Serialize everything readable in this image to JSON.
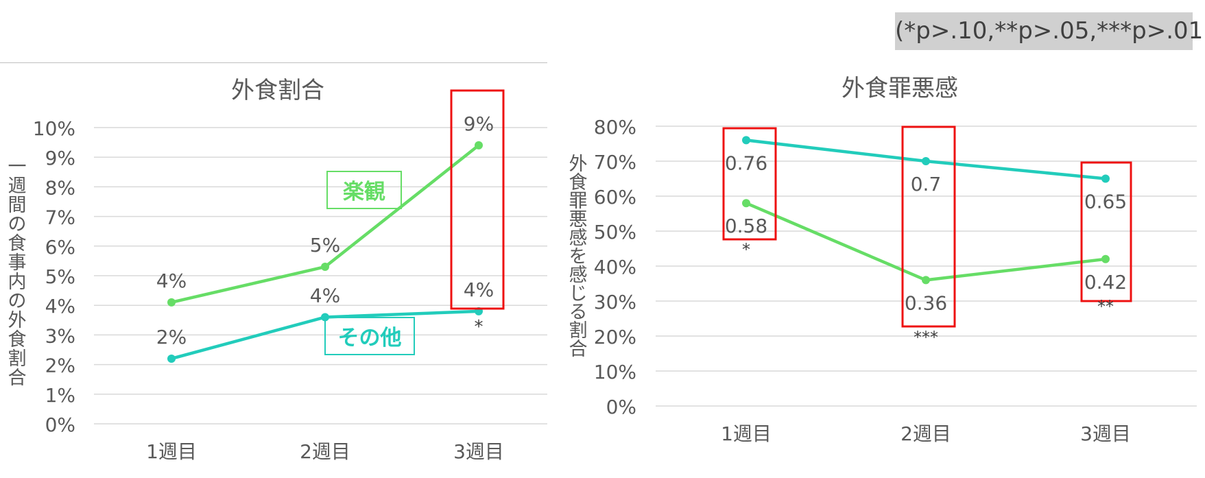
{
  "note": "(*p>.10,**p>.05,***p>.01)",
  "colors": {
    "optimistic": "#66dd66",
    "other": "#22ccbb",
    "highlight": "#ee1111",
    "grid": "#d9d9d9",
    "text": "#595959"
  },
  "chart_data": [
    {
      "type": "line",
      "title": "外食割合",
      "ylabel": "一週間の食事内の外食割合",
      "xlabel": "",
      "categories": [
        "1週目",
        "2週目",
        "3週目"
      ],
      "yticks": [
        "0%",
        "1%",
        "2%",
        "3%",
        "4%",
        "5%",
        "6%",
        "7%",
        "8%",
        "9%",
        "10%"
      ],
      "ylim": [
        0,
        0.1
      ],
      "grid": true,
      "series": [
        {
          "name": "楽観",
          "values": [
            0.041,
            0.053,
            0.094
          ],
          "labels": [
            "4%",
            "5%",
            "9%"
          ]
        },
        {
          "name": "その他",
          "values": [
            0.022,
            0.036,
            0.038
          ],
          "labels": [
            "2%",
            "4%",
            "4%"
          ]
        }
      ],
      "significance": [
        "",
        "",
        "*"
      ],
      "highlight_categories": [
        "3週目"
      ]
    },
    {
      "type": "line",
      "title": "外食罪悪感",
      "ylabel": "外食罪悪感を感じる割合",
      "xlabel": "",
      "categories": [
        "1週目",
        "2週目",
        "3週目"
      ],
      "yticks": [
        "0%",
        "10%",
        "20%",
        "30%",
        "40%",
        "50%",
        "60%",
        "70%",
        "80%"
      ],
      "ylim": [
        0,
        0.8
      ],
      "grid": true,
      "series": [
        {
          "name": "",
          "values": [
            0.76,
            0.7,
            0.65
          ],
          "labels": [
            "0.76",
            "0.7",
            "0.65"
          ]
        },
        {
          "name": "",
          "values": [
            0.58,
            0.36,
            0.42
          ],
          "labels": [
            "0.58",
            "0.36",
            "0.42"
          ]
        }
      ],
      "significance": [
        "*",
        "***",
        "**"
      ],
      "highlight_categories": [
        "1週目",
        "2週目",
        "3週目"
      ]
    }
  ]
}
